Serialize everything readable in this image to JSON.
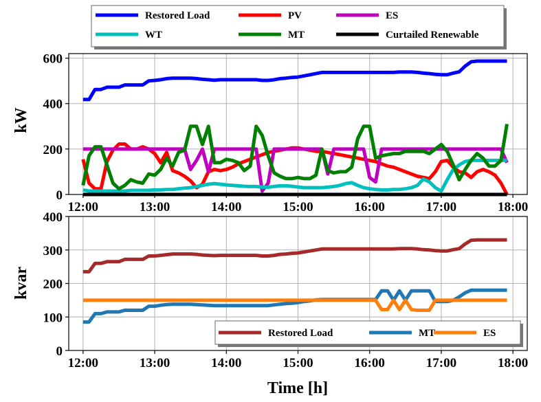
{
  "chart_data": [
    {
      "type": "line",
      "ylabel": "kW",
      "xlim": [
        "12:00",
        "18:00"
      ],
      "ylim": [
        0,
        620
      ],
      "x_ticks": [
        "12:00",
        "13:00",
        "14:00",
        "15:00",
        "16:00",
        "17:00",
        "18:00"
      ],
      "y_ticks": [
        "0",
        "200",
        "400",
        "600"
      ],
      "grid": true,
      "legend": "top, above plot (3 columns)",
      "x": [
        "12:00",
        "12:05",
        "12:10",
        "12:15",
        "12:20",
        "12:25",
        "12:30",
        "12:35",
        "12:40",
        "12:45",
        "12:50",
        "12:55",
        "13:00",
        "13:05",
        "13:10",
        "13:15",
        "13:20",
        "13:25",
        "13:30",
        "13:35",
        "13:40",
        "13:45",
        "13:50",
        "13:55",
        "14:00",
        "14:05",
        "14:10",
        "14:15",
        "14:20",
        "14:25",
        "14:30",
        "14:35",
        "14:40",
        "14:45",
        "14:50",
        "14:55",
        "15:00",
        "15:05",
        "15:10",
        "15:15",
        "15:20",
        "15:25",
        "15:30",
        "15:35",
        "15:40",
        "15:45",
        "15:50",
        "15:55",
        "16:00",
        "16:05",
        "16:10",
        "16:15",
        "16:20",
        "16:25",
        "16:30",
        "16:35",
        "16:40",
        "16:45",
        "16:50",
        "16:55",
        "17:00",
        "17:05",
        "17:10",
        "17:15",
        "17:20",
        "17:25",
        "17:30",
        "17:35",
        "17:40",
        "17:45",
        "17:50",
        "17:55"
      ],
      "series": [
        {
          "name": "Restored Load",
          "color": "#0000ff",
          "values": [
            418,
            418,
            462,
            462,
            472,
            472,
            472,
            482,
            482,
            482,
            482,
            500,
            502,
            505,
            510,
            512,
            512,
            512,
            512,
            510,
            507,
            505,
            503,
            505,
            505,
            505,
            505,
            505,
            505,
            505,
            502,
            502,
            505,
            510,
            512,
            515,
            517,
            522,
            527,
            532,
            537,
            537,
            537,
            537,
            537,
            537,
            537,
            537,
            537,
            537,
            537,
            537,
            537,
            539,
            539,
            539,
            537,
            534,
            532,
            529,
            527,
            527,
            534,
            540,
            565,
            584,
            587,
            587,
            587,
            587,
            587,
            587
          ]
        },
        {
          "name": "PV",
          "color": "#ff0000",
          "values": [
            155,
            50,
            25,
            25,
            145,
            195,
            222,
            222,
            200,
            200,
            210,
            200,
            180,
            140,
            185,
            105,
            95,
            80,
            60,
            30,
            45,
            100,
            110,
            105,
            110,
            120,
            135,
            145,
            155,
            165,
            175,
            185,
            190,
            195,
            200,
            205,
            205,
            200,
            195,
            190,
            190,
            185,
            180,
            175,
            170,
            165,
            160,
            155,
            150,
            145,
            135,
            125,
            120,
            110,
            100,
            90,
            80,
            75,
            70,
            100,
            145,
            150,
            120,
            100,
            95,
            75,
            100,
            110,
            100,
            85,
            50,
            0
          ]
        },
        {
          "name": "ES",
          "color": "#bf00bf",
          "values": [
            200,
            200,
            200,
            200,
            200,
            200,
            200,
            200,
            200,
            200,
            200,
            200,
            200,
            200,
            200,
            200,
            200,
            200,
            110,
            150,
            200,
            100,
            200,
            200,
            200,
            200,
            200,
            200,
            200,
            200,
            15,
            50,
            200,
            200,
            200,
            200,
            200,
            200,
            200,
            200,
            200,
            90,
            200,
            200,
            200,
            200,
            200,
            200,
            75,
            55,
            200,
            200,
            200,
            200,
            200,
            200,
            200,
            200,
            200,
            200,
            200,
            200,
            200,
            200,
            200,
            200,
            200,
            200,
            200,
            200,
            200,
            140
          ]
        },
        {
          "name": "WT",
          "color": "#00bfbf",
          "values": [
            20,
            15,
            15,
            15,
            15,
            15,
            15,
            15,
            18,
            18,
            18,
            18,
            20,
            20,
            22,
            22,
            25,
            28,
            30,
            35,
            40,
            45,
            48,
            45,
            42,
            40,
            38,
            36,
            35,
            35,
            32,
            32,
            35,
            38,
            38,
            36,
            33,
            30,
            30,
            30,
            30,
            32,
            35,
            40,
            48,
            52,
            40,
            30,
            25,
            22,
            20,
            20,
            22,
            22,
            25,
            30,
            40,
            68,
            55,
            30,
            15,
            65,
            110,
            130,
            145,
            150,
            150,
            150,
            150,
            150,
            150,
            150
          ]
        },
        {
          "name": "MT",
          "color": "#008000",
          "values": [
            40,
            170,
            210,
            210,
            130,
            50,
            25,
            40,
            65,
            55,
            50,
            90,
            85,
            110,
            160,
            125,
            185,
            195,
            300,
            300,
            220,
            300,
            140,
            140,
            155,
            150,
            140,
            105,
            125,
            300,
            260,
            170,
            95,
            80,
            70,
            70,
            75,
            70,
            70,
            85,
            200,
            105,
            95,
            100,
            100,
            120,
            245,
            300,
            300,
            160,
            170,
            175,
            180,
            180,
            190,
            190,
            190,
            190,
            180,
            200,
            220,
            190,
            130,
            65,
            110,
            150,
            180,
            160,
            125,
            125,
            150,
            310
          ]
        },
        {
          "name": "Curtailed Renewable",
          "color": "#000000",
          "values": [
            0,
            0,
            0,
            0,
            0,
            0,
            0,
            0,
            0,
            0,
            0,
            0,
            0,
            0,
            0,
            0,
            0,
            0,
            0,
            0,
            0,
            0,
            0,
            0,
            0,
            0,
            0,
            0,
            0,
            0,
            0,
            0,
            0,
            0,
            0,
            0,
            0,
            0,
            0,
            0,
            0,
            0,
            0,
            0,
            0,
            0,
            0,
            0,
            0,
            0,
            0,
            0,
            0,
            0,
            0,
            0,
            0,
            0,
            0,
            0,
            0,
            0,
            0,
            0,
            0,
            0,
            0,
            0,
            0,
            0,
            0,
            0
          ]
        }
      ]
    },
    {
      "type": "line",
      "xlabel": "Time [h]",
      "ylabel": "kvar",
      "xlim": [
        "12:00",
        "18:00"
      ],
      "ylim": [
        0,
        400
      ],
      "x_ticks": [
        "12:00",
        "13:00",
        "14:00",
        "15:00",
        "16:00",
        "17:00",
        "18:00"
      ],
      "y_ticks": [
        "0",
        "100",
        "200",
        "300",
        "400"
      ],
      "grid": true,
      "legend": "bottom-right (3 columns)",
      "x": [
        "12:00",
        "12:05",
        "12:10",
        "12:15",
        "12:20",
        "12:25",
        "12:30",
        "12:35",
        "12:40",
        "12:45",
        "12:50",
        "12:55",
        "13:00",
        "13:05",
        "13:10",
        "13:15",
        "13:20",
        "13:25",
        "13:30",
        "13:35",
        "13:40",
        "13:45",
        "13:50",
        "13:55",
        "14:00",
        "14:05",
        "14:10",
        "14:15",
        "14:20",
        "14:25",
        "14:30",
        "14:35",
        "14:40",
        "14:45",
        "14:50",
        "14:55",
        "15:00",
        "15:05",
        "15:10",
        "15:15",
        "15:20",
        "15:25",
        "15:30",
        "15:35",
        "15:40",
        "15:45",
        "15:50",
        "15:55",
        "16:00",
        "16:05",
        "16:10",
        "16:15",
        "16:20",
        "16:25",
        "16:30",
        "16:35",
        "16:40",
        "16:45",
        "16:50",
        "16:55",
        "17:00",
        "17:05",
        "17:10",
        "17:15",
        "17:20",
        "17:25",
        "17:30",
        "17:35",
        "17:40",
        "17:45",
        "17:50",
        "17:55"
      ],
      "series": [
        {
          "name": "Restored Load",
          "color": "#a52a2a",
          "values": [
            235,
            235,
            260,
            260,
            265,
            265,
            265,
            272,
            272,
            272,
            272,
            282,
            282,
            284,
            286,
            288,
            288,
            288,
            288,
            287,
            285,
            284,
            283,
            284,
            284,
            284,
            284,
            284,
            284,
            284,
            282,
            282,
            284,
            287,
            288,
            290,
            291,
            294,
            297,
            300,
            303,
            303,
            303,
            303,
            303,
            303,
            303,
            303,
            303,
            303,
            303,
            303,
            303,
            304,
            304,
            304,
            303,
            301,
            300,
            298,
            297,
            297,
            301,
            304,
            318,
            329,
            330,
            330,
            330,
            330,
            330,
            330
          ]
        },
        {
          "name": "MT",
          "color": "#1f77b4",
          "values": [
            85,
            85,
            110,
            110,
            115,
            115,
            115,
            120,
            120,
            120,
            120,
            132,
            132,
            135,
            137,
            138,
            138,
            138,
            138,
            137,
            136,
            135,
            134,
            134,
            134,
            134,
            134,
            134,
            134,
            134,
            134,
            134,
            136,
            138,
            140,
            141,
            143,
            146,
            148,
            151,
            152,
            152,
            152,
            152,
            152,
            152,
            152,
            152,
            152,
            152,
            178,
            178,
            150,
            178,
            150,
            178,
            178,
            178,
            178,
            146,
            146,
            146,
            150,
            160,
            172,
            180,
            180,
            180,
            180,
            180,
            180,
            180
          ]
        },
        {
          "name": "ES",
          "color": "#ff7f0e",
          "values": [
            150,
            150,
            150,
            150,
            150,
            150,
            150,
            150,
            150,
            150,
            150,
            150,
            150,
            150,
            150,
            150,
            150,
            150,
            150,
            150,
            150,
            150,
            150,
            150,
            150,
            150,
            150,
            150,
            150,
            150,
            150,
            150,
            150,
            150,
            150,
            150,
            150,
            150,
            150,
            150,
            150,
            150,
            150,
            150,
            150,
            150,
            150,
            150,
            150,
            150,
            122,
            122,
            150,
            122,
            150,
            122,
            120,
            120,
            120,
            150,
            150,
            150,
            150,
            150,
            150,
            150,
            150,
            150,
            150,
            150,
            150,
            150
          ]
        }
      ]
    }
  ]
}
